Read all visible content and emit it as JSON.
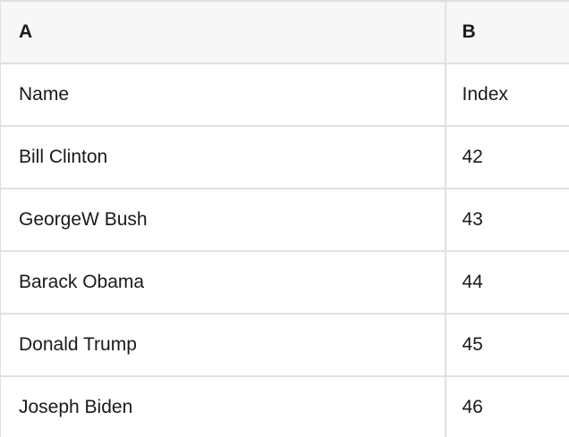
{
  "spreadsheet": {
    "columns": [
      {
        "label": "A"
      },
      {
        "label": "B"
      }
    ],
    "rows": [
      {
        "a": "Name",
        "b": "Index"
      },
      {
        "a": "Bill Clinton",
        "b": "42"
      },
      {
        "a": "GeorgeW Bush",
        "b": "43"
      },
      {
        "a": "Barack Obama",
        "b": "44"
      },
      {
        "a": "Donald Trump",
        "b": "45"
      },
      {
        "a": "Joseph Biden",
        "b": "46"
      }
    ],
    "colors": {
      "header_bg": "#f7f7f7",
      "border": "#e0e0e0",
      "text": "#1a1a1a",
      "background": "#ffffff"
    }
  }
}
